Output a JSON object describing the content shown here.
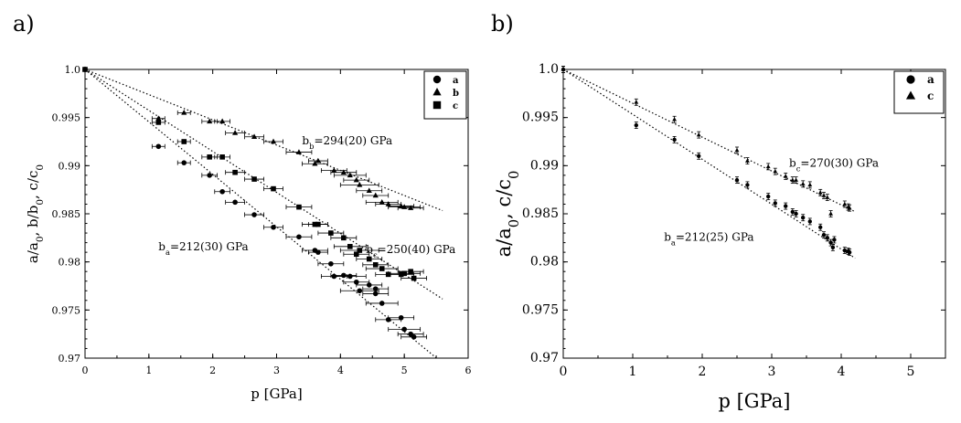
{
  "figure": {
    "panel_a_label": "a)",
    "panel_b_label": "b)"
  },
  "chart_data": [
    {
      "type": "scatter",
      "panel": "a)",
      "xlabel": "p [GPa]",
      "ylabel": "a/a0, b/b0, c/c0",
      "xlim": [
        0,
        6
      ],
      "ylim": [
        0.97,
        1.0
      ],
      "xticks": [
        "0",
        "1",
        "2",
        "3",
        "4",
        "5",
        "6"
      ],
      "yticks": [
        "0.97",
        "0.975",
        "0.98",
        "0.985",
        "0.99",
        "0.995",
        "1.0"
      ],
      "grid": false,
      "legend_position": "top-right",
      "legend": [
        "a",
        "b",
        "c"
      ],
      "annotations": [
        {
          "text": "b_b=294(20) GPa",
          "x": 3.4,
          "y": 0.9922
        },
        {
          "text": "b_a=212(30) GPa",
          "x": 1.15,
          "y": 0.9812
        },
        {
          "text": "b_c=250(40) GPa",
          "x": 4.4,
          "y": 0.9809
        }
      ],
      "fit_lines": [
        {
          "series": "b",
          "slope": -0.00262,
          "x_end": 5.6
        },
        {
          "series": "c",
          "slope": -0.00426,
          "x_end": 5.6
        },
        {
          "series": "a",
          "slope": -0.00545,
          "x_end": 5.5
        }
      ],
      "series": [
        {
          "name": "a",
          "marker": "circle",
          "points": [
            [
              0.0,
              1.0,
              0.0
            ],
            [
              1.15,
              0.992,
              0.1
            ],
            [
              1.55,
              0.9903,
              0.1
            ],
            [
              1.95,
              0.989,
              0.12
            ],
            [
              2.15,
              0.9873,
              0.12
            ],
            [
              2.35,
              0.9862,
              0.15
            ],
            [
              2.65,
              0.9849,
              0.15
            ],
            [
              2.95,
              0.9836,
              0.15
            ],
            [
              3.35,
              0.9826,
              0.2
            ],
            [
              3.6,
              0.9812,
              0.2
            ],
            [
              3.65,
              0.981,
              0.15
            ],
            [
              3.85,
              0.9798,
              0.2
            ],
            [
              3.9,
              0.9785,
              0.2
            ],
            [
              4.05,
              0.9786,
              0.2
            ],
            [
              4.15,
              0.9785,
              0.25
            ],
            [
              4.25,
              0.9779,
              0.2
            ],
            [
              4.3,
              0.977,
              0.3
            ],
            [
              4.45,
              0.9776,
              0.2
            ],
            [
              4.55,
              0.9772,
              0.2
            ],
            [
              4.55,
              0.9767,
              0.2
            ],
            [
              4.65,
              0.9757,
              0.25
            ],
            [
              4.75,
              0.974,
              0.2
            ],
            [
              4.95,
              0.9742,
              0.2
            ],
            [
              5.0,
              0.973,
              0.25
            ],
            [
              5.1,
              0.9725,
              0.2
            ],
            [
              5.15,
              0.9722,
              0.2
            ]
          ]
        },
        {
          "name": "b",
          "marker": "triangle",
          "points": [
            [
              0.0,
              1.0,
              0.0
            ],
            [
              1.15,
              0.9949,
              0.1
            ],
            [
              1.55,
              0.9955,
              0.1
            ],
            [
              1.95,
              0.9946,
              0.12
            ],
            [
              2.15,
              0.9946,
              0.12
            ],
            [
              2.35,
              0.9934,
              0.15
            ],
            [
              2.65,
              0.993,
              0.15
            ],
            [
              2.95,
              0.9925,
              0.15
            ],
            [
              3.35,
              0.9914,
              0.2
            ],
            [
              3.6,
              0.9902,
              0.2
            ],
            [
              3.65,
              0.9905,
              0.15
            ],
            [
              3.9,
              0.9895,
              0.2
            ],
            [
              4.05,
              0.9893,
              0.2
            ],
            [
              4.15,
              0.989,
              0.25
            ],
            [
              4.25,
              0.9885,
              0.2
            ],
            [
              4.3,
              0.988,
              0.3
            ],
            [
              4.45,
              0.9874,
              0.2
            ],
            [
              4.55,
              0.9869,
              0.2
            ],
            [
              4.65,
              0.9862,
              0.25
            ],
            [
              4.75,
              0.986,
              0.2
            ],
            [
              4.95,
              0.9858,
              0.2
            ],
            [
              5.0,
              0.9857,
              0.25
            ],
            [
              5.1,
              0.9856,
              0.2
            ]
          ]
        },
        {
          "name": "c",
          "marker": "square",
          "points": [
            [
              0.0,
              1.0,
              0.0
            ],
            [
              1.15,
              0.9945,
              0.1
            ],
            [
              1.55,
              0.9925,
              0.1
            ],
            [
              1.95,
              0.9909,
              0.12
            ],
            [
              2.15,
              0.9909,
              0.12
            ],
            [
              2.35,
              0.9893,
              0.15
            ],
            [
              2.65,
              0.9886,
              0.15
            ],
            [
              2.95,
              0.9876,
              0.15
            ],
            [
              3.35,
              0.9857,
              0.2
            ],
            [
              3.6,
              0.9839,
              0.2
            ],
            [
              3.65,
              0.9839,
              0.15
            ],
            [
              3.85,
              0.983,
              0.2
            ],
            [
              4.05,
              0.9825,
              0.2
            ],
            [
              4.15,
              0.9816,
              0.25
            ],
            [
              4.25,
              0.9808,
              0.2
            ],
            [
              4.3,
              0.9812,
              0.3
            ],
            [
              4.45,
              0.9803,
              0.2
            ],
            [
              4.55,
              0.9797,
              0.2
            ],
            [
              4.65,
              0.9793,
              0.25
            ],
            [
              4.75,
              0.9787,
              0.2
            ],
            [
              4.95,
              0.9787,
              0.2
            ],
            [
              5.0,
              0.9788,
              0.25
            ],
            [
              5.1,
              0.979,
              0.2
            ],
            [
              5.15,
              0.9783,
              0.2
            ]
          ]
        }
      ]
    },
    {
      "type": "scatter",
      "panel": "b)",
      "xlabel": "p [GPa]",
      "ylabel": "a/a0, c/c0",
      "xlim": [
        0,
        5.5
      ],
      "ylim": [
        0.97,
        1.0
      ],
      "xticks": [
        "0",
        "1",
        "2",
        "3",
        "4",
        "5"
      ],
      "yticks": [
        "0.97",
        "0.975",
        "0.98",
        "0.985",
        "0.99",
        "0.995",
        "1.0"
      ],
      "grid": false,
      "legend_position": "top-right",
      "legend": [
        "a",
        "c"
      ],
      "annotations": [
        {
          "text": "b_c=270(30) GPa",
          "x": 3.25,
          "y": 0.9899
        },
        {
          "text": "b_a=212(25) GPa",
          "x": 1.45,
          "y": 0.9822
        }
      ],
      "fit_lines": [
        {
          "series": "c",
          "slope": -0.00352,
          "x_end": 4.2
        },
        {
          "series": "a",
          "slope": -0.00467,
          "x_end": 4.2
        }
      ],
      "series": [
        {
          "name": "a",
          "marker": "circle",
          "points": [
            [
              0.0,
              1.0
            ],
            [
              1.05,
              0.9942
            ],
            [
              1.6,
              0.9927
            ],
            [
              1.95,
              0.991
            ],
            [
              2.5,
              0.9885
            ],
            [
              2.65,
              0.988
            ],
            [
              2.95,
              0.9868
            ],
            [
              3.05,
              0.9861
            ],
            [
              3.2,
              0.9858
            ],
            [
              3.3,
              0.9852
            ],
            [
              3.35,
              0.985
            ],
            [
              3.45,
              0.9846
            ],
            [
              3.55,
              0.9842
            ],
            [
              3.7,
              0.9836
            ],
            [
              3.75,
              0.9828
            ],
            [
              3.8,
              0.9825
            ],
            [
              3.85,
              0.982
            ],
            [
              3.88,
              0.9815
            ],
            [
              3.9,
              0.9823
            ],
            [
              4.05,
              0.9812
            ],
            [
              4.1,
              0.9811
            ],
            [
              4.12,
              0.981
            ]
          ]
        },
        {
          "name": "c",
          "marker": "triangle",
          "points": [
            [
              0.0,
              1.0
            ],
            [
              1.05,
              0.9966
            ],
            [
              1.6,
              0.9948
            ],
            [
              1.95,
              0.9932
            ],
            [
              2.5,
              0.9916
            ],
            [
              2.65,
              0.9905
            ],
            [
              2.95,
              0.9899
            ],
            [
              3.05,
              0.9894
            ],
            [
              3.2,
              0.9889
            ],
            [
              3.3,
              0.9885
            ],
            [
              3.35,
              0.9885
            ],
            [
              3.45,
              0.9881
            ],
            [
              3.55,
              0.988
            ],
            [
              3.7,
              0.9872
            ],
            [
              3.75,
              0.9869
            ],
            [
              3.8,
              0.9867
            ],
            [
              3.85,
              0.985
            ],
            [
              4.05,
              0.986
            ],
            [
              4.1,
              0.9857
            ],
            [
              4.12,
              0.9856
            ]
          ]
        }
      ]
    }
  ]
}
